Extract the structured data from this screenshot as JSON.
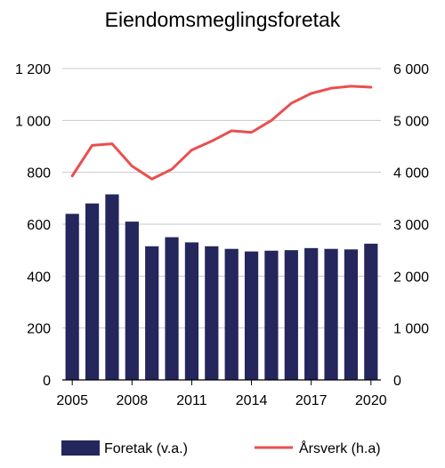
{
  "chart_data": {
    "type": "bar+line",
    "title": "Eiendomsmeglingsforetak",
    "x": [
      2005,
      2006,
      2007,
      2008,
      2009,
      2010,
      2011,
      2012,
      2013,
      2014,
      2015,
      2016,
      2017,
      2018,
      2019,
      2020
    ],
    "x_tick_labels": [
      "2005",
      "2008",
      "2011",
      "2014",
      "2017",
      "2020"
    ],
    "x_tick_values": [
      2005,
      2008,
      2011,
      2014,
      2017,
      2020
    ],
    "left_axis": {
      "ylim": [
        0,
        1200
      ],
      "ticks": [
        0,
        200,
        400,
        600,
        800,
        1000,
        1200
      ],
      "tick_labels": [
        "0",
        "200",
        "400",
        "600",
        "800",
        "1 000",
        "1 200"
      ]
    },
    "right_axis": {
      "ylim": [
        0,
        6000
      ],
      "ticks": [
        0,
        1000,
        2000,
        3000,
        4000,
        5000,
        6000
      ],
      "tick_labels": [
        "0",
        "1 000",
        "2 000",
        "3 000",
        "4 000",
        "5 000",
        "6 000"
      ]
    },
    "series": [
      {
        "name": "Foretak (v.a.)",
        "type": "bar",
        "axis": "left",
        "color": "#24265c",
        "values": [
          640,
          680,
          715,
          610,
          515,
          550,
          530,
          515,
          505,
          495,
          498,
          500,
          508,
          505,
          503,
          525
        ]
      },
      {
        "name": "Årsverk (h.a)",
        "type": "line",
        "axis": "right",
        "color": "#e8504f",
        "values": [
          3930,
          4520,
          4550,
          4120,
          3870,
          4060,
          4430,
          4600,
          4800,
          4770,
          5000,
          5330,
          5520,
          5620,
          5660,
          5640
        ]
      }
    ],
    "legend_position": "bottom",
    "grid": "horizontal"
  }
}
